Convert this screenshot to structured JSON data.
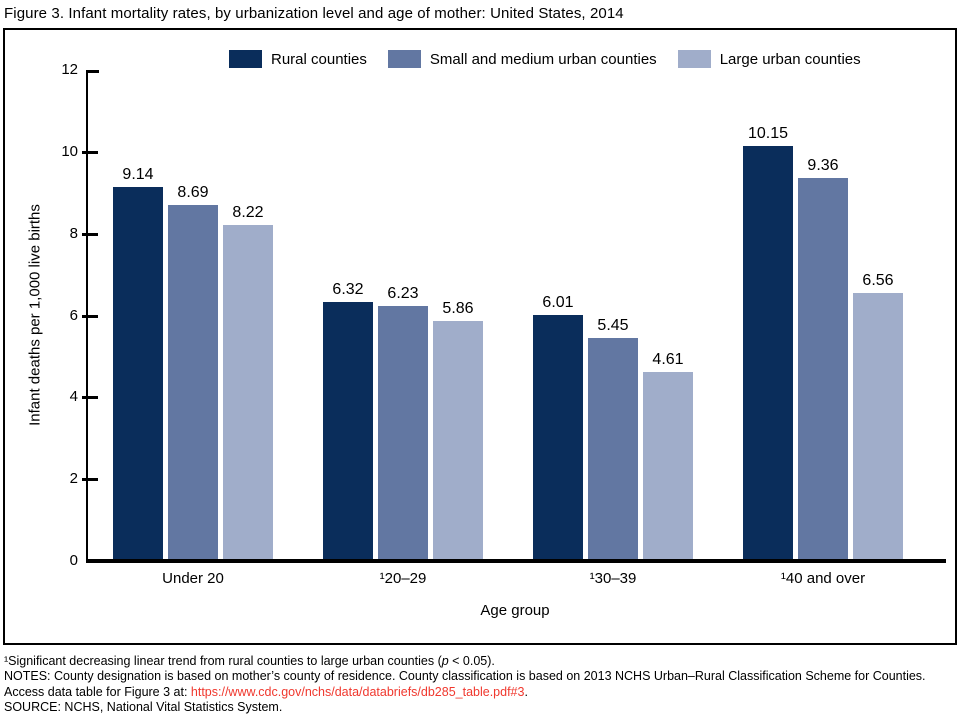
{
  "title": "Figure 3. Infant mortality rates, by urbanization level and age of mother: United States, 2014",
  "colors": {
    "rural": "#0a2d5b",
    "small_medium": "#6277a2",
    "large": "#a0adca",
    "axis": "#000000",
    "link": "#f0382e"
  },
  "legend": [
    {
      "label": "Rural counties",
      "color": "#0a2d5b"
    },
    {
      "label": "Small and medium urban counties",
      "color": "#6277a2"
    },
    {
      "label": "Large urban counties",
      "color": "#a0adca"
    }
  ],
  "chart_data": {
    "type": "bar",
    "title": "Figure 3. Infant mortality rates, by urbanization level and age of mother: United States, 2014",
    "categories": [
      "Under 20",
      "¹20–29",
      "¹30–39",
      "¹40 and over"
    ],
    "series": [
      {
        "name": "Rural counties",
        "color": "#0a2d5b",
        "values": [
          9.14,
          6.32,
          6.01,
          10.15
        ]
      },
      {
        "name": "Small and medium urban counties",
        "color": "#6277a2",
        "values": [
          8.69,
          6.23,
          5.45,
          9.36
        ]
      },
      {
        "name": "Large urban counties",
        "color": "#a0adca",
        "values": [
          8.22,
          5.86,
          4.61,
          6.56
        ]
      }
    ],
    "xlabel": "Age group",
    "ylabel": "Infant deaths per 1,000 live births",
    "ylim": [
      0,
      12
    ],
    "yticks": [
      0,
      2,
      4,
      6,
      8,
      10,
      12
    ],
    "grid": false,
    "legend_position": "top",
    "bar_labels": true
  },
  "footnotes": {
    "trend_pre": "¹Significant decreasing linear trend from rural counties to large urban counties (",
    "trend_italic": "p",
    "trend_post": " < 0.05).",
    "notes_pre": "NOTES: County designation is based on mother’s county of residence. County classification is based on 2013 NCHS Urban–Rural Classification Scheme for Counties. Access data table for Figure 3 at: ",
    "link": "https://www.cdc.gov/nchs/data/databriefs/db285_table.pdf#3",
    "notes_post": ".",
    "source": "SOURCE: NCHS, National Vital Statistics System."
  }
}
